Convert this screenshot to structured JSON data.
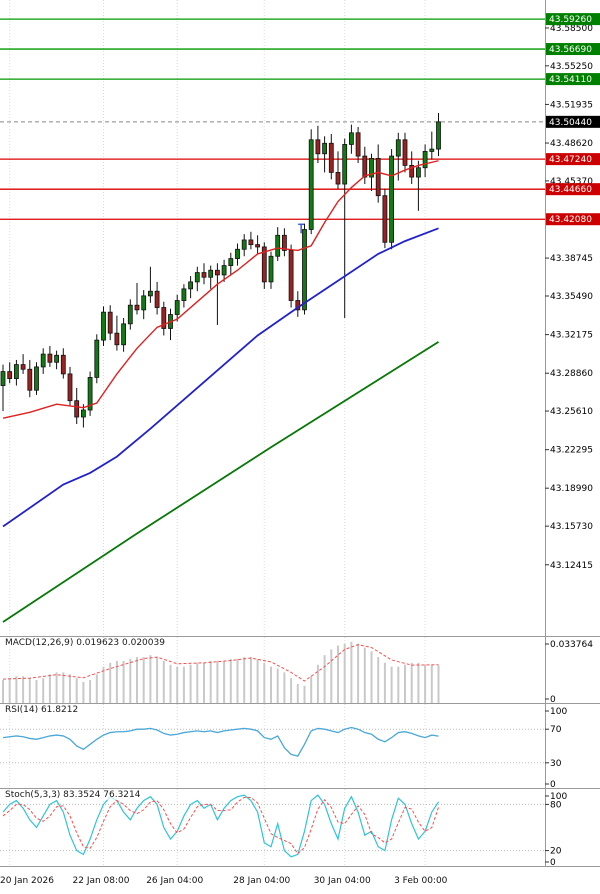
{
  "colors": {
    "background": "#ffffff",
    "bull": "#127a12",
    "bear": "#992222",
    "candle_outline": "#111111",
    "ma_fast": "#e02020",
    "ma_mid": "#2222cc",
    "ma_slow": "#067806",
    "resistance": "#009900",
    "support": "#dd0000",
    "resistance_label_bg": "#008000",
    "support_label_bg": "#cc0000",
    "current_label_bg": "#000000",
    "macd_bar": "#c9c9c9",
    "macd_signal": "#ff4d4d",
    "rsi_line": "#4aa8d8",
    "stoch_main": "#2fc4d9",
    "stoch_signal": "#ff4d4d",
    "grid": "#dcdcdc",
    "axis_border": "#9a9a9a",
    "axis_text": "#000000"
  },
  "panels": {
    "macd": {
      "header": "MACD(12,26,9) 0.019623 0.020039"
    },
    "rsi": {
      "header": "RSI(14) 61.8212"
    },
    "stoch": {
      "header": "Stoch(5,3,3) 83.3524 76.3214"
    }
  },
  "time_axis": {
    "labels": [
      {
        "text": "20 Jan 2026",
        "index": 1
      },
      {
        "text": "22 Jan 08:00",
        "index": 15
      },
      {
        "text": "26 Jan 04:00",
        "index": 26
      },
      {
        "text": "28 Jan 04:00",
        "index": 39
      },
      {
        "text": "30 Jan 04:00",
        "index": 51
      },
      {
        "text": "3 Feb 00:00",
        "index": 63
      }
    ]
  },
  "chart_data": [
    {
      "type": "candlestick",
      "panel": "price",
      "y_range": [
        43.063,
        43.609
      ],
      "candles": [
        [
          43.278,
          43.296,
          43.256,
          43.29
        ],
        [
          43.29,
          43.298,
          43.28,
          43.284
        ],
        [
          43.284,
          43.3,
          43.278,
          43.296
        ],
        [
          43.296,
          43.305,
          43.288,
          43.292
        ],
        [
          43.292,
          43.3,
          43.268,
          43.274
        ],
        [
          43.274,
          43.298,
          43.27,
          43.294
        ],
        [
          43.294,
          43.31,
          43.288,
          43.305
        ],
        [
          43.305,
          43.312,
          43.294,
          43.298
        ],
        [
          43.298,
          43.308,
          43.292,
          43.304
        ],
        [
          43.304,
          43.31,
          43.284,
          43.288
        ],
        [
          43.288,
          43.294,
          43.26,
          43.265
        ],
        [
          43.265,
          43.276,
          43.245,
          43.251
        ],
        [
          43.251,
          43.262,
          43.242,
          43.257
        ],
        [
          43.257,
          43.29,
          43.252,
          43.285
        ],
        [
          43.285,
          43.322,
          43.28,
          43.317
        ],
        [
          43.317,
          43.346,
          43.312,
          43.341
        ],
        [
          43.341,
          43.347,
          43.317,
          43.323
        ],
        [
          43.323,
          43.338,
          43.308,
          43.313
        ],
        [
          43.313,
          43.336,
          43.307,
          43.331
        ],
        [
          43.331,
          43.352,
          43.326,
          43.347
        ],
        [
          43.347,
          43.366,
          43.339,
          43.343
        ],
        [
          43.343,
          43.36,
          43.335,
          43.355
        ],
        [
          43.355,
          43.38,
          43.349,
          43.359
        ],
        [
          43.359,
          43.367,
          43.339,
          43.345
        ],
        [
          43.345,
          43.35,
          43.321,
          43.327
        ],
        [
          43.327,
          43.344,
          43.317,
          43.339
        ],
        [
          43.339,
          43.356,
          43.333,
          43.351
        ],
        [
          43.351,
          43.365,
          43.345,
          43.361
        ],
        [
          43.361,
          43.372,
          43.353,
          43.367
        ],
        [
          43.367,
          43.38,
          43.359,
          43.375
        ],
        [
          43.375,
          43.383,
          43.365,
          43.371
        ],
        [
          43.371,
          43.381,
          43.361,
          43.377
        ],
        [
          43.377,
          43.383,
          43.33,
          43.373
        ],
        [
          43.373,
          43.386,
          43.367,
          43.381
        ],
        [
          43.381,
          43.392,
          43.373,
          43.387
        ],
        [
          43.387,
          43.4,
          43.381,
          43.395
        ],
        [
          43.395,
          43.408,
          43.389,
          43.403
        ],
        [
          43.403,
          43.41,
          43.395,
          43.399
        ],
        [
          43.399,
          43.407,
          43.391,
          43.397
        ],
        [
          43.397,
          43.401,
          43.361,
          43.367
        ],
        [
          43.367,
          43.393,
          43.361,
          43.389
        ],
        [
          43.389,
          43.414,
          43.385,
          43.407
        ],
        [
          43.407,
          43.413,
          43.389,
          43.394
        ],
        [
          43.394,
          43.399,
          43.345,
          43.351
        ],
        [
          43.351,
          43.359,
          43.337,
          43.343
        ],
        [
          43.343,
          43.417,
          43.339,
          43.412
        ],
        [
          43.412,
          43.498,
          43.408,
          43.489
        ],
        [
          43.489,
          43.501,
          43.469,
          43.477
        ],
        [
          43.477,
          43.492,
          43.461,
          43.486
        ],
        [
          43.486,
          43.494,
          43.455,
          43.461
        ],
        [
          43.461,
          43.479,
          43.447,
          43.451
        ],
        [
          43.451,
          43.49,
          43.336,
          43.485
        ],
        [
          43.485,
          43.502,
          43.477,
          43.495
        ],
        [
          43.495,
          43.5,
          43.469,
          43.475
        ],
        [
          43.475,
          43.483,
          43.451,
          43.457
        ],
        [
          43.457,
          43.477,
          43.445,
          43.473
        ],
        [
          43.473,
          43.485,
          43.435,
          43.441
        ],
        [
          43.441,
          43.447,
          43.396,
          43.401
        ],
        [
          43.401,
          43.481,
          43.395,
          43.475
        ],
        [
          43.475,
          43.495,
          43.454,
          43.489
        ],
        [
          43.489,
          43.495,
          43.461,
          43.467
        ],
        [
          43.467,
          43.479,
          43.451,
          43.457
        ],
        [
          43.457,
          43.471,
          43.428,
          43.465
        ],
        [
          43.465,
          43.485,
          43.457,
          43.479
        ],
        [
          43.479,
          43.496,
          43.472,
          43.481
        ],
        [
          43.481,
          43.512,
          43.475,
          43.5044
        ]
      ],
      "overlays": [
        {
          "name": "ma-fast",
          "color": "#e02020",
          "width": 1.4,
          "points": [
            [
              0,
              43.25
            ],
            [
              4,
              43.255
            ],
            [
              8,
              43.262
            ],
            [
              12,
              43.259
            ],
            [
              14,
              43.263
            ],
            [
              17,
              43.288
            ],
            [
              20,
              43.31
            ],
            [
              23,
              43.328
            ],
            [
              26,
              43.335
            ],
            [
              29,
              43.35
            ],
            [
              32,
              43.365
            ],
            [
              35,
              43.377
            ],
            [
              38,
              43.391
            ],
            [
              41,
              43.396
            ],
            [
              44,
              43.394
            ],
            [
              46,
              43.398
            ],
            [
              48,
              43.418
            ],
            [
              50,
              43.436
            ],
            [
              52,
              43.448
            ],
            [
              54,
              43.458
            ],
            [
              56,
              43.461
            ],
            [
              58,
              43.458
            ],
            [
              60,
              43.463
            ],
            [
              62,
              43.467
            ],
            [
              65,
              43.471
            ]
          ]
        },
        {
          "name": "ma-mid",
          "color": "#2222cc",
          "width": 1.8,
          "points": [
            [
              0,
              43.157
            ],
            [
              9,
              43.193
            ],
            [
              13,
              43.203
            ],
            [
              17,
              43.217
            ],
            [
              22,
              43.241
            ],
            [
              30,
              43.281
            ],
            [
              38,
              43.321
            ],
            [
              44,
              43.345
            ],
            [
              50,
              43.368
            ],
            [
              56,
              43.391
            ],
            [
              60,
              43.402
            ],
            [
              65,
              43.413
            ]
          ]
        },
        {
          "name": "ma-slow",
          "color": "#067806",
          "width": 1.8,
          "points": [
            [
              0,
              43.075
            ],
            [
              20,
              43.151
            ],
            [
              40,
              43.225
            ],
            [
              65,
              43.3155
            ]
          ]
        }
      ],
      "levels": {
        "resistance": [
          {
            "value": 43.5926,
            "label": "43.59260"
          },
          {
            "value": 43.5669,
            "label": "43.56690"
          },
          {
            "value": 43.5411,
            "label": "43.54110"
          }
        ],
        "support": [
          {
            "value": 43.4724,
            "label": "43.47240"
          },
          {
            "value": 43.4466,
            "label": "43.44660"
          },
          {
            "value": 43.4208,
            "label": "43.42080"
          }
        ],
        "current": {
          "value": 43.5044,
          "label": "43.50440"
        }
      },
      "ticks": [
        {
          "value": 43.585,
          "label": "43.58500"
        },
        {
          "value": 43.5525,
          "label": "43.55250"
        },
        {
          "value": 43.51935,
          "label": "43.51935"
        },
        {
          "value": 43.4862,
          "label": "43.48620"
        },
        {
          "value": 43.4537,
          "label": "43.45370"
        },
        {
          "value": 43.38745,
          "label": "43.38745"
        },
        {
          "value": 43.3549,
          "label": "43.35490"
        },
        {
          "value": 43.32175,
          "label": "43.32175"
        },
        {
          "value": 43.2886,
          "label": "43.28860"
        },
        {
          "value": 43.2561,
          "label": "43.25610"
        },
        {
          "value": 43.22295,
          "label": "43.22295"
        },
        {
          "value": 43.1899,
          "label": "43.18990"
        },
        {
          "value": 43.1573,
          "label": "43.15730"
        },
        {
          "value": 43.12415,
          "label": "43.12415"
        }
      ],
      "marker": {
        "index": 44.5,
        "price": 43.413
      }
    },
    {
      "type": "bar",
      "panel": "macd",
      "y_range": [
        0,
        0.0345
      ],
      "values": [
        0.012,
        0.013,
        0.014,
        0.014,
        0.013,
        0.012,
        0.013,
        0.015,
        0.016,
        0.016,
        0.015,
        0.013,
        0.011,
        0.012,
        0.015,
        0.019,
        0.021,
        0.022,
        0.022,
        0.023,
        0.024,
        0.024,
        0.025,
        0.024,
        0.022,
        0.02,
        0.019,
        0.019,
        0.02,
        0.021,
        0.021,
        0.022,
        0.022,
        0.022,
        0.023,
        0.023,
        0.024,
        0.024,
        0.023,
        0.021,
        0.019,
        0.018,
        0.016,
        0.013,
        0.01,
        0.009,
        0.014,
        0.02,
        0.025,
        0.028,
        0.03,
        0.031,
        0.032,
        0.031,
        0.029,
        0.027,
        0.024,
        0.021,
        0.019,
        0.019,
        0.02,
        0.021,
        0.021,
        0.02,
        0.02,
        0.0196
      ],
      "signal": [
        [
          0,
          0.0125
        ],
        [
          4,
          0.013
        ],
        [
          8,
          0.0148
        ],
        [
          12,
          0.0132
        ],
        [
          16,
          0.018
        ],
        [
          21,
          0.0232
        ],
        [
          23,
          0.024
        ],
        [
          26,
          0.0205
        ],
        [
          30,
          0.021
        ],
        [
          34,
          0.0222
        ],
        [
          37,
          0.0235
        ],
        [
          40,
          0.0215
        ],
        [
          43,
          0.016
        ],
        [
          45,
          0.0115
        ],
        [
          48,
          0.019
        ],
        [
          51,
          0.028
        ],
        [
          53,
          0.0305
        ],
        [
          55,
          0.029
        ],
        [
          58,
          0.0225
        ],
        [
          61,
          0.0198
        ],
        [
          65,
          0.02
        ]
      ],
      "axis_labels": [
        {
          "value": 0.033764,
          "label": "0.033764"
        },
        {
          "value": 0,
          "label": "0"
        }
      ]
    },
    {
      "type": "line",
      "panel": "rsi",
      "y_range": [
        0,
        100
      ],
      "levels": [
        70,
        30
      ],
      "values": [
        60,
        61,
        62,
        61,
        59,
        58,
        60,
        62,
        63,
        62,
        58,
        50,
        46,
        52,
        58,
        63,
        66,
        67,
        67,
        68,
        70,
        70,
        71,
        69,
        65,
        63,
        64,
        66,
        67,
        68,
        67,
        68,
        66,
        68,
        69,
        70,
        71,
        70,
        68,
        60,
        58,
        62,
        48,
        40,
        38,
        52,
        68,
        71,
        70,
        68,
        66,
        70,
        72,
        70,
        66,
        64,
        58,
        55,
        60,
        66,
        67,
        65,
        62,
        60,
        63,
        61.8
      ],
      "axis_labels": [
        {
          "value": 100,
          "label": "100"
        },
        {
          "value": 70,
          "label": "70"
        },
        {
          "value": 30,
          "label": "30"
        },
        {
          "value": 0,
          "label": "0"
        }
      ]
    },
    {
      "type": "line",
      "panel": "stoch",
      "y_range": [
        0,
        100
      ],
      "levels": [
        80,
        20
      ],
      "main": [
        70,
        80,
        85,
        75,
        60,
        50,
        65,
        80,
        85,
        70,
        40,
        20,
        15,
        35,
        60,
        80,
        90,
        85,
        70,
        60,
        75,
        85,
        90,
        80,
        50,
        35,
        45,
        65,
        80,
        85,
        75,
        80,
        60,
        75,
        85,
        90,
        92,
        85,
        70,
        30,
        25,
        55,
        20,
        12,
        15,
        45,
        85,
        92,
        80,
        55,
        35,
        75,
        90,
        70,
        40,
        45,
        25,
        20,
        60,
        88,
        80,
        55,
        35,
        45,
        70,
        83.4
      ],
      "signal_values": [
        65,
        72,
        80,
        80,
        73,
        62,
        58,
        65,
        77,
        78,
        65,
        43,
        25,
        23,
        37,
        58,
        77,
        85,
        80,
        72,
        68,
        73,
        83,
        85,
        73,
        55,
        43,
        48,
        63,
        77,
        80,
        80,
        72,
        72,
        73,
        83,
        89,
        89,
        82,
        62,
        42,
        37,
        33,
        29,
        16,
        24,
        48,
        74,
        86,
        76,
        57,
        55,
        67,
        78,
        67,
        42,
        37,
        30,
        35,
        56,
        76,
        74,
        57,
        45,
        50,
        76.3
      ],
      "axis_labels": [
        {
          "value": 100,
          "label": "100"
        },
        {
          "value": 80,
          "label": "80"
        },
        {
          "value": 20,
          "label": "20"
        },
        {
          "value": 0,
          "label": "0"
        }
      ]
    }
  ]
}
